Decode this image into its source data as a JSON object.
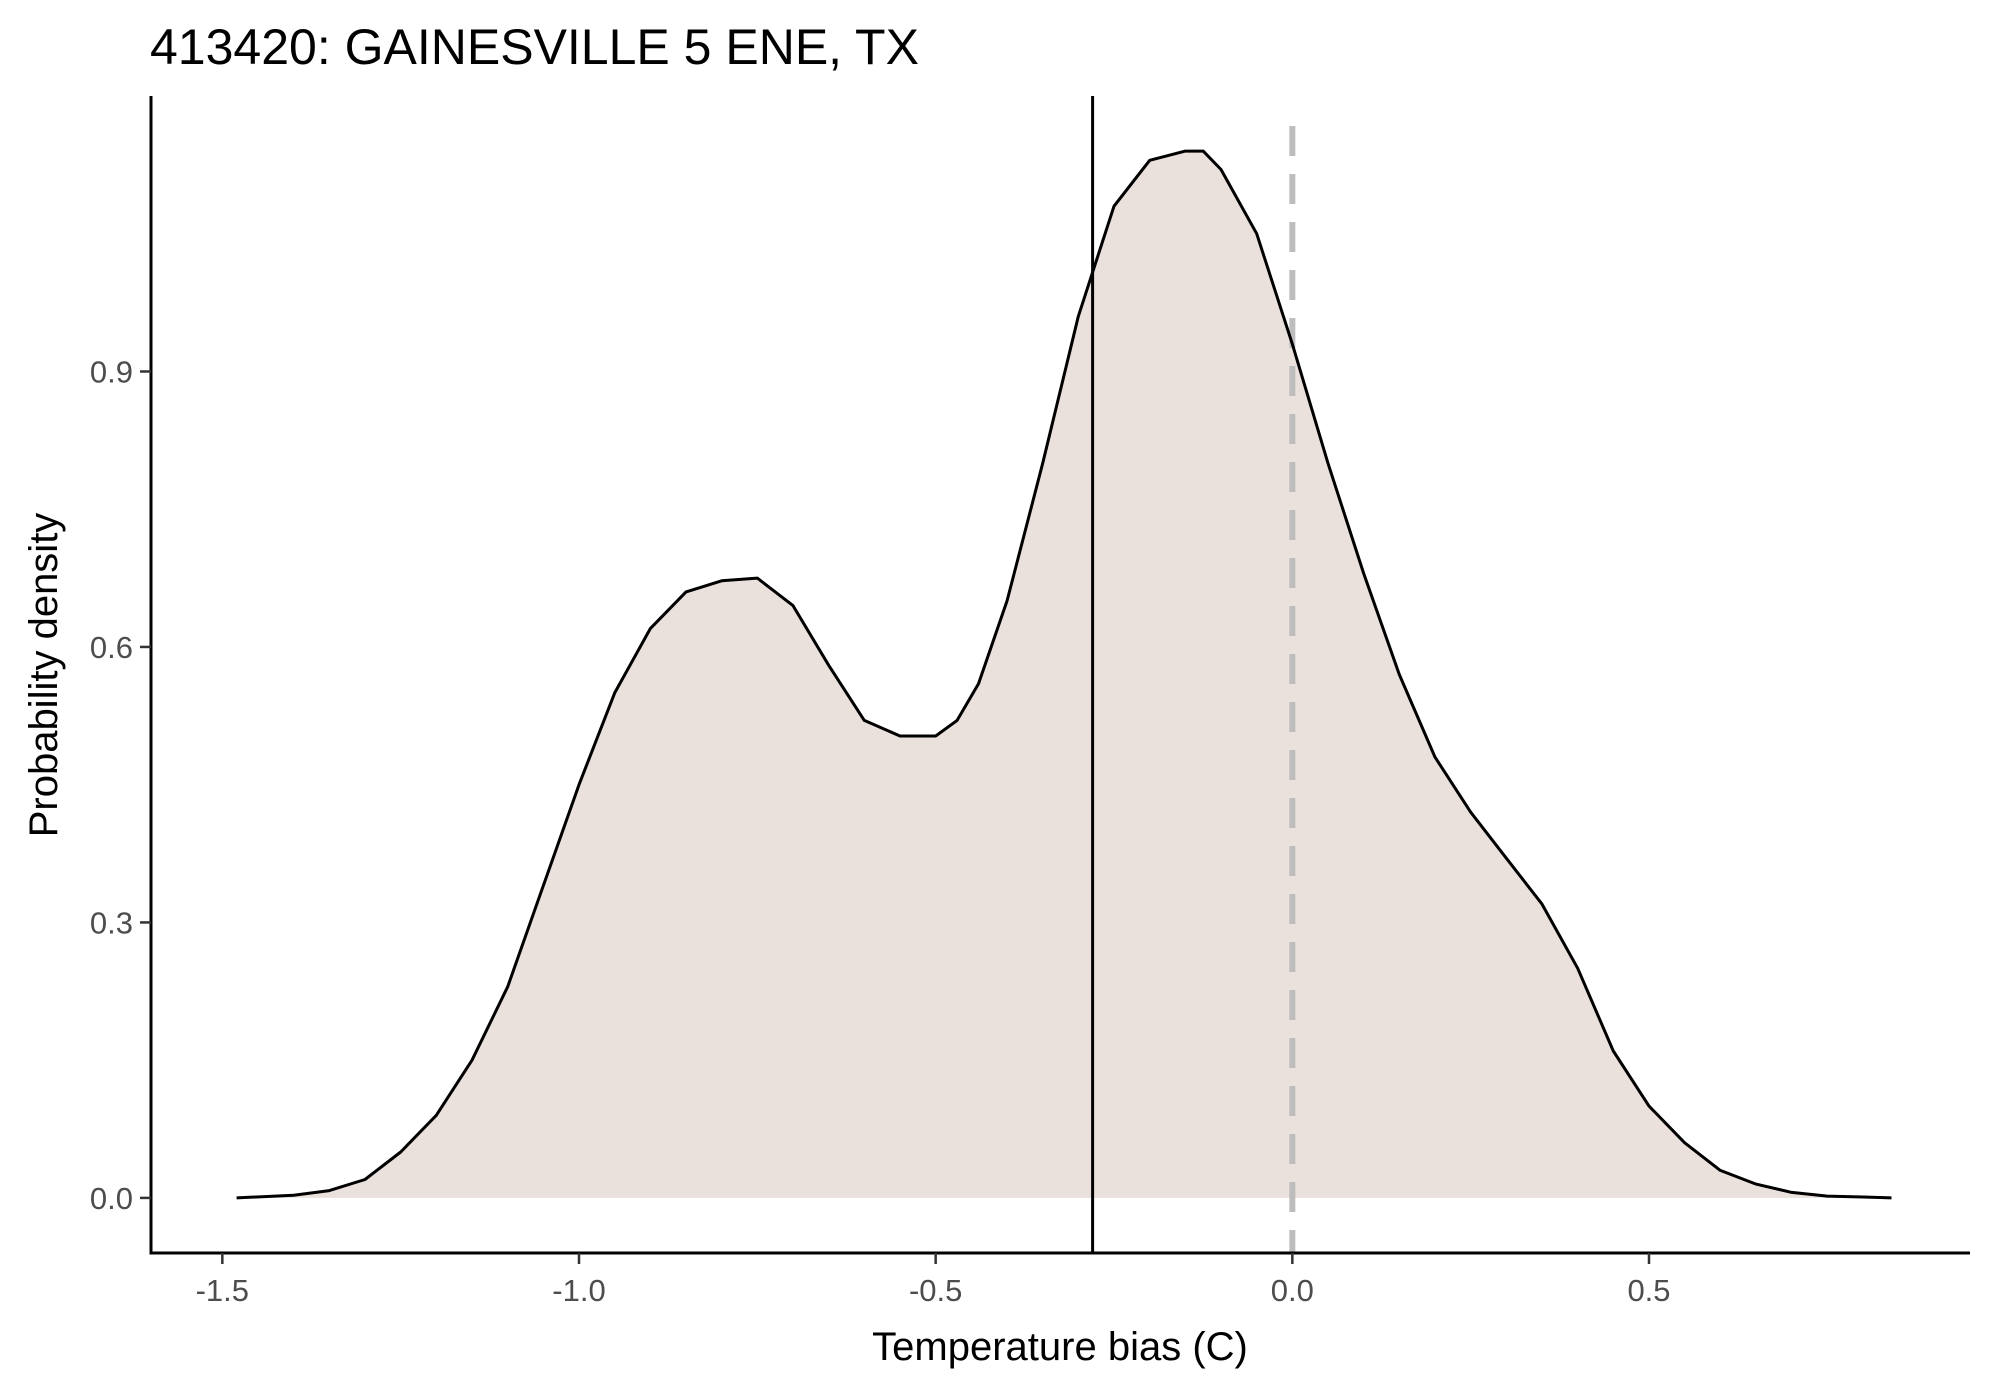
{
  "chart_data": {
    "type": "area",
    "title": "413420: GAINESVILLE 5 ENE, TX",
    "xlabel": "Temperature bias (C)",
    "ylabel": "Probability density",
    "xlim": [
      -1.6,
      0.95
    ],
    "ylim": [
      -0.06,
      1.2
    ],
    "x_ticks": [
      -1.5,
      -1.0,
      -0.5,
      0.0,
      0.5
    ],
    "x_tick_labels": [
      "-1.5",
      "-1.0",
      "-0.5",
      "0.0",
      "0.5"
    ],
    "y_ticks": [
      0.0,
      0.3,
      0.6,
      0.9
    ],
    "y_tick_labels": [
      "0.0",
      "0.3",
      "0.6",
      "0.9"
    ],
    "grid": false,
    "legend": "none",
    "series": [
      {
        "x": [
          -1.48,
          -1.4,
          -1.35,
          -1.3,
          -1.25,
          -1.2,
          -1.15,
          -1.1,
          -1.05,
          -1.0,
          -0.95,
          -0.9,
          -0.85,
          -0.8,
          -0.75,
          -0.7,
          -0.65,
          -0.6,
          -0.55,
          -0.5,
          -0.47,
          -0.44,
          -0.4,
          -0.35,
          -0.3,
          -0.25,
          -0.2,
          -0.15,
          -0.125,
          -0.1,
          -0.05,
          0.0,
          0.05,
          0.1,
          0.15,
          0.2,
          0.25,
          0.3,
          0.35,
          0.4,
          0.45,
          0.5,
          0.55,
          0.6,
          0.65,
          0.7,
          0.75,
          0.8,
          0.84
        ],
        "y": [
          0.0,
          0.003,
          0.008,
          0.02,
          0.05,
          0.09,
          0.15,
          0.23,
          0.34,
          0.45,
          0.55,
          0.62,
          0.66,
          0.672,
          0.675,
          0.645,
          0.58,
          0.52,
          0.503,
          0.503,
          0.52,
          0.56,
          0.65,
          0.8,
          0.96,
          1.08,
          1.13,
          1.14,
          1.14,
          1.12,
          1.05,
          0.93,
          0.8,
          0.68,
          0.57,
          0.48,
          0.42,
          0.37,
          0.32,
          0.25,
          0.16,
          0.1,
          0.06,
          0.03,
          0.015,
          0.006,
          0.002,
          0.001,
          0.0
        ]
      }
    ],
    "reference_lines": [
      {
        "x": -0.28,
        "style": "solid",
        "color": "#000000"
      },
      {
        "x": 0.0,
        "style": "dashed",
        "color": "#bdbdbd"
      }
    ],
    "colors": {
      "fill": "#eae1dd",
      "line": "#000000"
    }
  }
}
